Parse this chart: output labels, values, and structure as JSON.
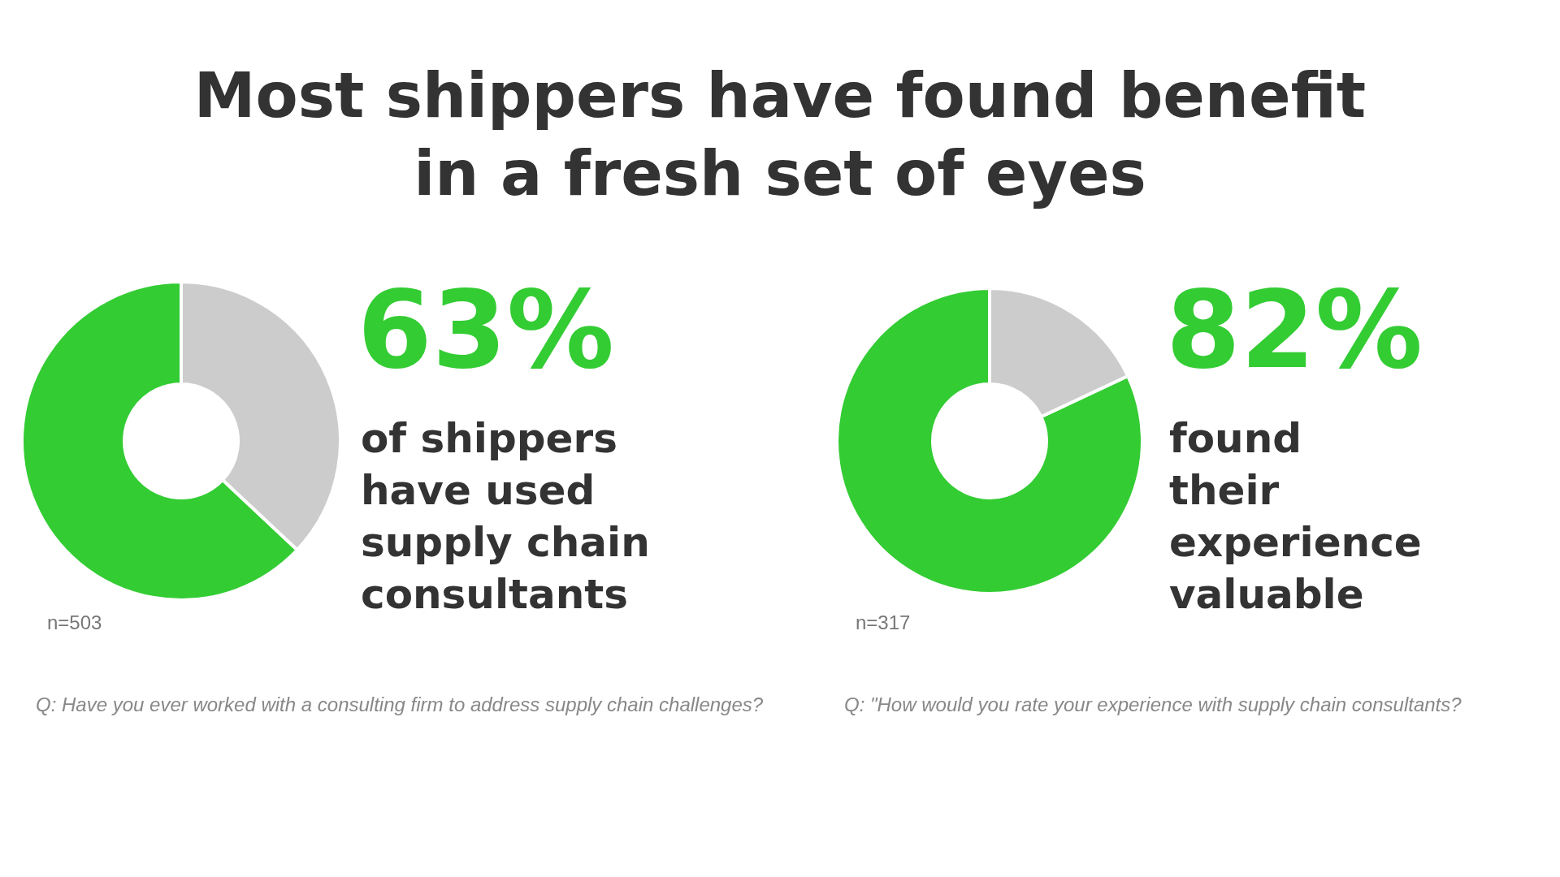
{
  "chart_data": [
    {
      "type": "donut",
      "title": "Most shippers have found benefit\nin a fresh set of eyes",
      "categories": [
        null,
        null
      ],
      "values": [
        63,
        37
      ],
      "colors": [
        "#33cc33",
        "#cccccc"
      ],
      "annotations": [
        "63%",
        "of shippers\nhave used\nsupply chain\nconsultants",
        "n=503",
        "Q: Have you ever worked with a consulting firm to address supply chain challenges?"
      ]
    },
    {
      "type": "donut",
      "categories": [
        null,
        null
      ],
      "values": [
        82,
        18
      ],
      "colors": [
        "#33cc33",
        "#cccccc"
      ],
      "annotations": [
        "82%",
        "found\ntheir\nexperience\nvaluable",
        "n=317",
        "Q: \"How would you rate your experience with supply chain consultants?"
      ]
    }
  ]
}
